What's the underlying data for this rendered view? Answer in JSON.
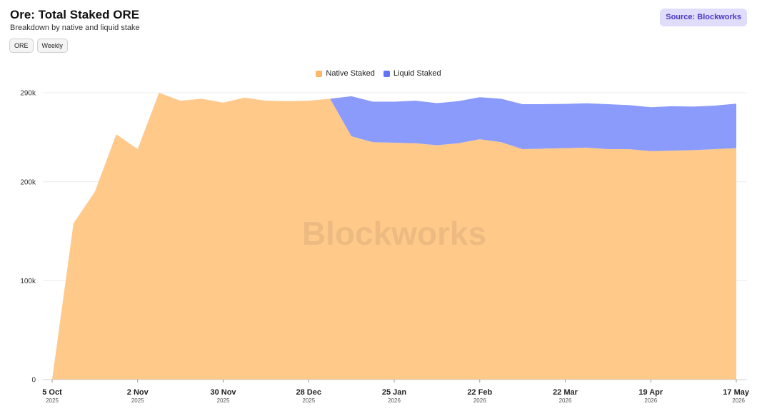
{
  "header": {
    "title": "Ore: Total Staked ORE",
    "subtitle": "Breakdown by native and liquid stake",
    "source": "Source: Blockworks"
  },
  "toggles": [
    {
      "label": "ORE"
    },
    {
      "label": "Weekly"
    }
  ],
  "watermark": "Blockworks",
  "colors": {
    "native": "#ffc98a",
    "liquid": "#8a9bfb",
    "native_swatch": "#fcb867",
    "liquid_swatch": "#5f74f7",
    "badge_bg": "#e0dcfb",
    "badge_text": "#4a38c4"
  },
  "chart_data": {
    "type": "area",
    "stacked": true,
    "x": [
      "2025-10-05",
      "2025-10-12",
      "2025-10-19",
      "2025-10-26",
      "2025-11-02",
      "2025-11-09",
      "2025-11-16",
      "2025-11-23",
      "2025-11-30",
      "2025-12-07",
      "2025-12-14",
      "2025-12-21",
      "2025-12-28",
      "2026-01-04",
      "2026-01-11",
      "2026-01-18",
      "2026-01-25",
      "2026-02-01",
      "2026-02-08",
      "2026-02-15",
      "2026-02-22",
      "2026-03-01",
      "2026-03-08",
      "2026-03-15",
      "2026-03-22",
      "2026-03-29",
      "2026-04-05",
      "2026-04-12",
      "2026-04-19",
      "2026-04-26",
      "2026-05-03",
      "2026-05-10",
      "2026-05-17"
    ],
    "series": [
      {
        "name": "Native Staked",
        "values": [
          0,
          158000,
          190000,
          248000,
          233000,
          290000,
          282000,
          284000,
          280000,
          285000,
          282000,
          281500,
          282000,
          284000,
          246000,
          240000,
          239500,
          239000,
          237000,
          239000,
          243000,
          240000,
          233000,
          233500,
          234000,
          234500,
          233000,
          233000,
          231000,
          231500,
          232000,
          233000,
          234000
        ]
      },
      {
        "name": "Liquid Staked",
        "values": [
          0,
          0,
          0,
          0,
          0,
          0,
          0,
          0,
          0,
          0,
          0,
          0,
          0,
          0,
          40500,
          41000,
          41500,
          43000,
          42500,
          42500,
          42500,
          44000,
          45500,
          45000,
          44700,
          44900,
          45500,
          44500,
          44400,
          44900,
          44000,
          44000,
          45000
        ]
      }
    ],
    "x_ticks": [
      {
        "date": "2025-10-05",
        "label": "5 Oct",
        "year": "2025"
      },
      {
        "date": "2025-11-02",
        "label": "2 Nov",
        "year": "2025"
      },
      {
        "date": "2025-11-30",
        "label": "30 Nov",
        "year": "2025"
      },
      {
        "date": "2025-12-28",
        "label": "28 Dec",
        "year": "2025"
      },
      {
        "date": "2026-01-25",
        "label": "25 Jan",
        "year": "2026"
      },
      {
        "date": "2026-02-22",
        "label": "22 Feb",
        "year": "2026"
      },
      {
        "date": "2026-03-22",
        "label": "22 Mar",
        "year": "2026"
      },
      {
        "date": "2026-04-19",
        "label": "19 Apr",
        "year": "2026"
      },
      {
        "date": "2026-05-17",
        "label": "17 May",
        "year": "2026"
      }
    ],
    "y_ticks": [
      {
        "value": 0,
        "label": "0"
      },
      {
        "value": 100000,
        "label": "100k"
      },
      {
        "value": 200000,
        "label": "200k"
      },
      {
        "value": 290000,
        "label": "290k"
      }
    ],
    "ylim": [
      0,
      290000
    ],
    "grid": true,
    "legend_position": "top-center"
  }
}
